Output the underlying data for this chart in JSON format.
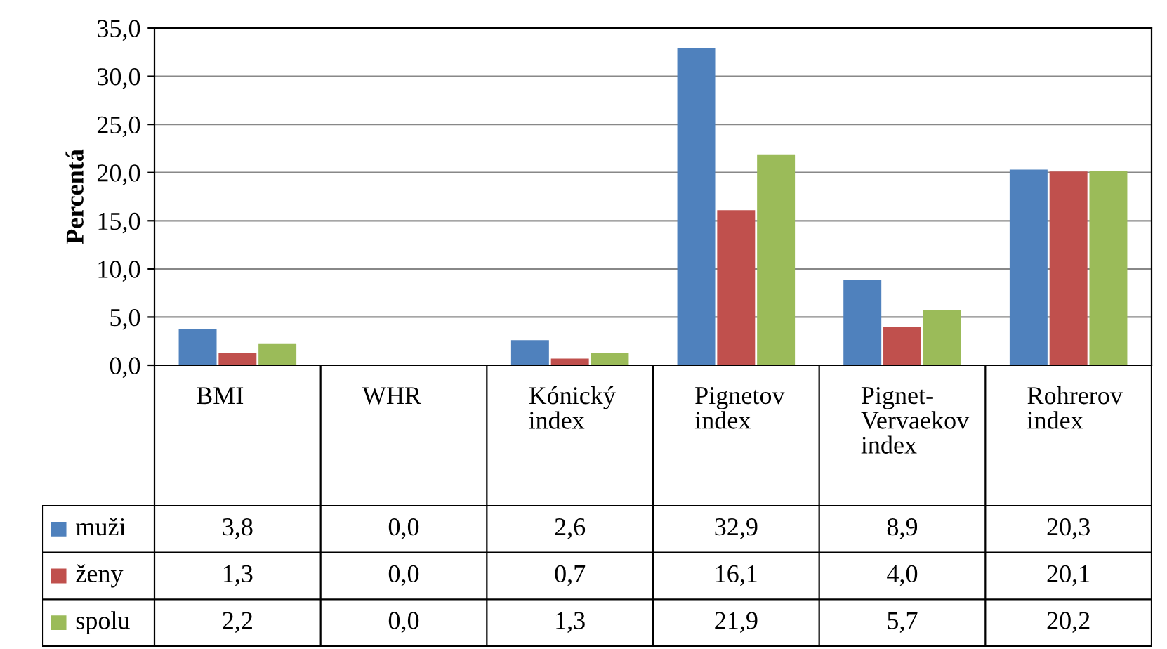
{
  "chart_data": {
    "type": "bar",
    "ylabel": "Percentá",
    "categories": [
      "BMI",
      "WHR",
      "Kónický\nindex",
      "Pignetov\nindex",
      "Pignet-\nVervaekov\nindex",
      "Rohrerov\nindex"
    ],
    "series": [
      {
        "name": "muži",
        "color": "#4f81bd",
        "values": [
          3.8,
          0.0,
          2.6,
          32.9,
          8.9,
          20.3
        ],
        "value_labels": [
          "3,8",
          "0,0",
          "2,6",
          "32,9",
          "8,9",
          "20,3"
        ]
      },
      {
        "name": "ženy",
        "color": "#c0504d",
        "values": [
          1.3,
          0.0,
          0.7,
          16.1,
          4.0,
          20.1
        ],
        "value_labels": [
          "1,3",
          "0,0",
          "0,7",
          "16,1",
          "4,0",
          "20,1"
        ]
      },
      {
        "name": "spolu",
        "color": "#9bbb59",
        "values": [
          2.2,
          0.0,
          1.3,
          21.9,
          5.7,
          20.2
        ],
        "value_labels": [
          "2,2",
          "0,0",
          "1,3",
          "21,9",
          "5,7",
          "20,2"
        ]
      }
    ],
    "ylim": [
      0,
      35
    ],
    "yticks": [
      {
        "value": 0,
        "label": "0,0"
      },
      {
        "value": 5,
        "label": "5,0"
      },
      {
        "value": 10,
        "label": "10,0"
      },
      {
        "value": 15,
        "label": "15,0"
      },
      {
        "value": 20,
        "label": "20,0"
      },
      {
        "value": 25,
        "label": "25,0"
      },
      {
        "value": 30,
        "label": "30,0"
      },
      {
        "value": 35,
        "label": "35,0"
      }
    ],
    "grid": "y",
    "legend": "bottom"
  }
}
